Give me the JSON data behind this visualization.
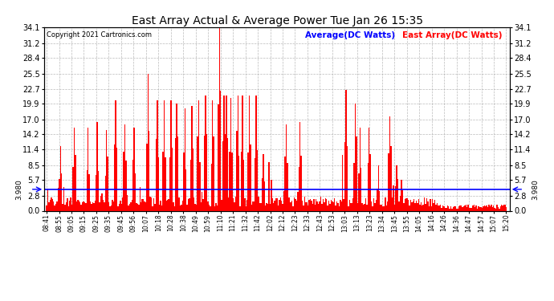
{
  "title": "East Array Actual & Average Power Tue Jan 26 15:35",
  "copyright": "Copyright 2021 Cartronics.com",
  "legend_avg": "Average(DC Watts)",
  "legend_east": "East Array(DC Watts)",
  "avg_value": 3.98,
  "y_max": 34.1,
  "y_min": 0.0,
  "y_ticks": [
    0.0,
    2.8,
    5.7,
    8.5,
    11.4,
    14.2,
    17.0,
    19.9,
    22.7,
    25.5,
    28.4,
    31.2,
    34.1
  ],
  "bar_color": "#ff0000",
  "avg_line_color": "#0000ff",
  "background_color": "#ffffff",
  "grid_color": "#aaaaaa",
  "title_color": "#000000",
  "avg_label_color": "#0000ff",
  "east_label_color": "#ff0000",
  "x_labels": [
    "08:41",
    "08:55",
    "09:05",
    "09:15",
    "09:25",
    "09:35",
    "09:45",
    "09:56",
    "10:07",
    "10:18",
    "10:28",
    "10:38",
    "10:49",
    "10:59",
    "11:10",
    "11:21",
    "11:32",
    "11:42",
    "12:02",
    "12:12",
    "12:23",
    "12:33",
    "12:43",
    "12:53",
    "13:03",
    "13:13",
    "13:23",
    "13:34",
    "13:45",
    "13:55",
    "14:05",
    "14:16",
    "14:26",
    "14:36",
    "14:47",
    "14:57",
    "15:07",
    "15:20"
  ]
}
